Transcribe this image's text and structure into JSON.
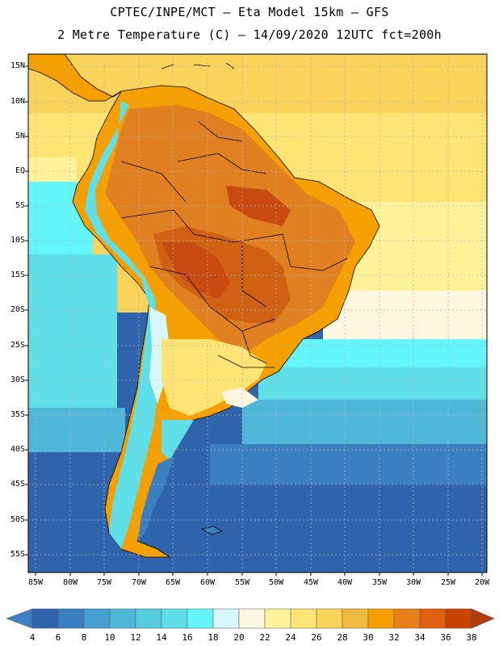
{
  "header": {
    "title_line1": "CPTEC/INPE/MCT –  Eta Model 15km – GFS",
    "title_line2": "2 Metre Temperature (C) – 14/09/2020 12UTC fct=200h"
  },
  "map": {
    "region": "South America",
    "variable": "2 Metre Temperature",
    "units": "C",
    "lat_labels": [
      "15N",
      "10N",
      "5N",
      "EQ",
      "5S",
      "10S",
      "15S",
      "20S",
      "25S",
      "30S",
      "35S",
      "40S",
      "45S",
      "50S",
      "55S"
    ],
    "lon_labels": [
      "85W",
      "80W",
      "75W",
      "70W",
      "65W",
      "60W",
      "55W",
      "50W",
      "45W",
      "40W",
      "35W",
      "30W",
      "25W",
      "20W"
    ]
  },
  "colorbar": {
    "levels": [
      "4",
      "6",
      "8",
      "10",
      "12",
      "14",
      "16",
      "18",
      "20",
      "22",
      "24",
      "26",
      "28",
      "30",
      "32",
      "34",
      "36",
      "38"
    ],
    "colors": [
      "#3f7fc4",
      "#2f64ac",
      "#3a7fbf",
      "#46a0cf",
      "#4fb8d8",
      "#55cddd",
      "#5fe0e8",
      "#63f7fb",
      "#d6f7fb",
      "#fff7df",
      "#fff39a",
      "#fde474",
      "#f9d35a",
      "#f0b93f",
      "#f6a000",
      "#e8801a",
      "#e06010",
      "#c84200",
      "#b23a10"
    ]
  }
}
